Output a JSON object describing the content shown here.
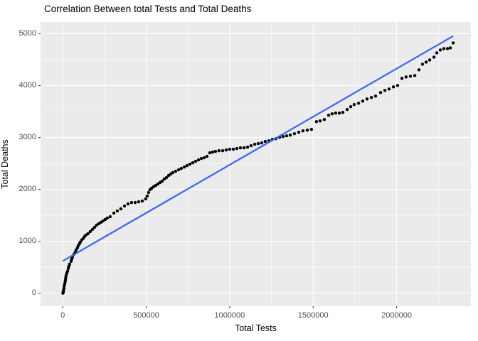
{
  "title": "Correlation Between total Tests and Total Deaths",
  "chart_data": {
    "type": "scatter",
    "title": "Correlation Between total Tests and Total Deaths",
    "xlabel": "Total Tests",
    "ylabel": "Total Deaths",
    "xlim": [
      -133000,
      2445000
    ],
    "ylim": [
      -250,
      5225
    ],
    "x_ticks": [
      0,
      500000,
      1000000,
      1500000,
      2000000
    ],
    "x_tick_labels": [
      "0",
      "500000",
      "1000000",
      "1500000",
      "2000000"
    ],
    "x_minor_ticks": [
      250000,
      750000,
      1250000,
      1750000,
      2250000
    ],
    "y_ticks": [
      0,
      1000,
      2000,
      3000,
      4000,
      5000
    ],
    "y_tick_labels": [
      "0",
      "1000",
      "2000",
      "3000",
      "4000",
      "5000"
    ],
    "y_minor_ticks": [
      500,
      1500,
      2500,
      3500,
      4500
    ],
    "grid": true,
    "legend": false,
    "panel_bg": "#ebebeb",
    "grid_color": "#ffffff",
    "tick_color": "#333333",
    "tick_label_color": "#4d4d4d",
    "series": [
      {
        "name": "observations",
        "type": "scatter",
        "color": "#000000",
        "point_radius": 2.2,
        "points": [
          [
            1000,
            0
          ],
          [
            2000,
            10
          ],
          [
            3000,
            28
          ],
          [
            5000,
            55
          ],
          [
            7000,
            95
          ],
          [
            9000,
            140
          ],
          [
            11000,
            175
          ],
          [
            14000,
            215
          ],
          [
            16000,
            255
          ],
          [
            18000,
            300
          ],
          [
            20000,
            340
          ],
          [
            24000,
            383
          ],
          [
            29000,
            424
          ],
          [
            33000,
            478
          ],
          [
            37000,
            519
          ],
          [
            41000,
            560
          ],
          [
            50000,
            615
          ],
          [
            54000,
            656
          ],
          [
            58000,
            697
          ],
          [
            67000,
            752
          ],
          [
            75000,
            793
          ],
          [
            80000,
            834
          ],
          [
            88000,
            875
          ],
          [
            93000,
            916
          ],
          [
            101000,
            957
          ],
          [
            105000,
            984
          ],
          [
            114000,
            1025
          ],
          [
            122000,
            1053
          ],
          [
            131000,
            1094
          ],
          [
            139000,
            1121
          ],
          [
            152000,
            1148
          ],
          [
            165000,
            1189
          ],
          [
            178000,
            1230
          ],
          [
            191000,
            1271
          ],
          [
            203000,
            1312
          ],
          [
            216000,
            1339
          ],
          [
            229000,
            1367
          ],
          [
            242000,
            1394
          ],
          [
            254000,
            1421
          ],
          [
            267000,
            1448
          ],
          [
            284000,
            1476
          ],
          [
            306000,
            1544
          ],
          [
            327000,
            1585
          ],
          [
            348000,
            1626
          ],
          [
            370000,
            1680
          ],
          [
            391000,
            1721
          ],
          [
            412000,
            1748
          ],
          [
            434000,
            1748
          ],
          [
            455000,
            1762
          ],
          [
            476000,
            1776
          ],
          [
            497000,
            1817
          ],
          [
            506000,
            1872
          ],
          [
            514000,
            1940
          ],
          [
            523000,
            1995
          ],
          [
            532000,
            2022
          ],
          [
            544000,
            2050
          ],
          [
            557000,
            2077
          ],
          [
            570000,
            2104
          ],
          [
            583000,
            2132
          ],
          [
            595000,
            2159
          ],
          [
            608000,
            2200
          ],
          [
            621000,
            2227
          ],
          [
            634000,
            2268
          ],
          [
            647000,
            2296
          ],
          [
            659000,
            2323
          ],
          [
            676000,
            2350
          ],
          [
            694000,
            2378
          ],
          [
            710000,
            2405
          ],
          [
            728000,
            2432
          ],
          [
            745000,
            2460
          ],
          [
            762000,
            2487
          ],
          [
            779000,
            2514
          ],
          [
            796000,
            2541
          ],
          [
            813000,
            2569
          ],
          [
            830000,
            2596
          ],
          [
            847000,
            2610
          ],
          [
            864000,
            2637
          ],
          [
            881000,
            2705
          ],
          [
            898000,
            2719
          ],
          [
            915000,
            2733
          ],
          [
            936000,
            2746
          ],
          [
            958000,
            2746
          ],
          [
            979000,
            2760
          ],
          [
            1000000,
            2774
          ],
          [
            1022000,
            2774
          ],
          [
            1043000,
            2787
          ],
          [
            1064000,
            2801
          ],
          [
            1086000,
            2801
          ],
          [
            1107000,
            2815
          ],
          [
            1128000,
            2842
          ],
          [
            1150000,
            2869
          ],
          [
            1171000,
            2883
          ],
          [
            1192000,
            2896
          ],
          [
            1213000,
            2924
          ],
          [
            1235000,
            2937
          ],
          [
            1256000,
            2965
          ],
          [
            1277000,
            2978
          ],
          [
            1299000,
            3006
          ],
          [
            1320000,
            3019
          ],
          [
            1341000,
            3033
          ],
          [
            1363000,
            3046
          ],
          [
            1388000,
            3074
          ],
          [
            1414000,
            3101
          ],
          [
            1439000,
            3128
          ],
          [
            1465000,
            3142
          ],
          [
            1490000,
            3156
          ],
          [
            1520000,
            3306
          ],
          [
            1542000,
            3320
          ],
          [
            1567000,
            3347
          ],
          [
            1593000,
            3429
          ],
          [
            1614000,
            3457
          ],
          [
            1635000,
            3470
          ],
          [
            1657000,
            3470
          ],
          [
            1678000,
            3484
          ],
          [
            1704000,
            3539
          ],
          [
            1725000,
            3593
          ],
          [
            1746000,
            3634
          ],
          [
            1772000,
            3661
          ],
          [
            1797000,
            3702
          ],
          [
            1823000,
            3743
          ],
          [
            1849000,
            3771
          ],
          [
            1874000,
            3798
          ],
          [
            1904000,
            3866
          ],
          [
            1930000,
            3907
          ],
          [
            1955000,
            3934
          ],
          [
            1981000,
            3975
          ],
          [
            2006000,
            4003
          ],
          [
            2032000,
            4139
          ],
          [
            2057000,
            4167
          ],
          [
            2083000,
            4180
          ],
          [
            2109000,
            4194
          ],
          [
            2134000,
            4303
          ],
          [
            2155000,
            4412
          ],
          [
            2177000,
            4453
          ],
          [
            2198000,
            4494
          ],
          [
            2224000,
            4549
          ],
          [
            2241000,
            4631
          ],
          [
            2262000,
            4686
          ],
          [
            2283000,
            4713
          ],
          [
            2305000,
            4713
          ],
          [
            2322000,
            4726
          ],
          [
            2339000,
            4822
          ]
        ]
      },
      {
        "name": "regression-line",
        "type": "line",
        "color": "#3366FF",
        "line_width": 2.2,
        "points": [
          [
            0,
            620
          ],
          [
            2339000,
            4955
          ]
        ]
      }
    ]
  }
}
